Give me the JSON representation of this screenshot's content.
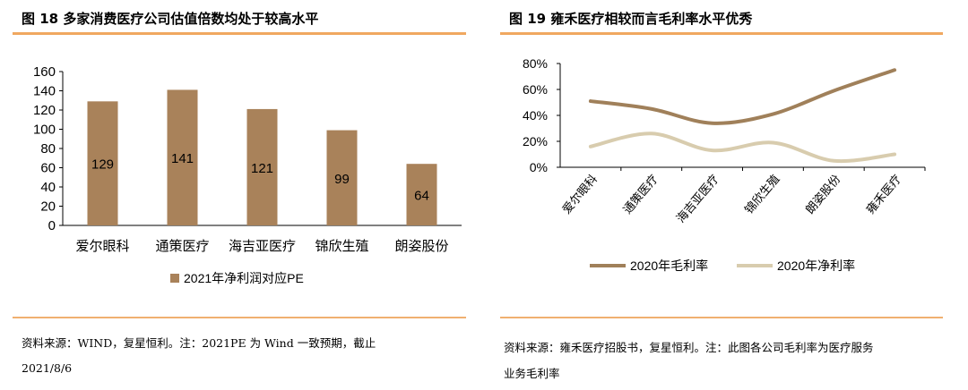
{
  "left": {
    "title": "图 18  多家消费医疗公司估值倍数均处于较高水平",
    "source_line1": "资料来源：WIND，复星恒利。注：2021PE 为 Wind 一致预期，截止",
    "source_line2": "2021/8/6"
  },
  "right": {
    "title": "图 19  雍禾医疗相较而言毛利率水平优秀",
    "source_line1": "资料来源：雍禾医疗招股书，复星恒利。注：此图各公司毛利率为医疗服务",
    "source_line2": "业务毛利率"
  },
  "chart_data": [
    {
      "type": "bar",
      "categories": [
        "爱尔眼科",
        "通策医疗",
        "海吉亚医疗",
        "锦欣生殖",
        "朗姿股份"
      ],
      "series": [
        {
          "name": "2021年净利润对应PE",
          "values": [
            129,
            141,
            121,
            99,
            64
          ],
          "color": "#a9825a"
        }
      ],
      "ylim": [
        0,
        160
      ],
      "yticks": [
        0,
        20,
        40,
        60,
        80,
        100,
        120,
        140,
        160
      ],
      "data_labels": true,
      "legend": "bottom",
      "grid": false
    },
    {
      "type": "line",
      "categories": [
        "爱尔眼科",
        "通策医疗",
        "海吉亚医疗",
        "锦欣生殖",
        "朗姿股份",
        "雍禾医疗"
      ],
      "series": [
        {
          "name": "2020年毛利率",
          "values": [
            51,
            45,
            34,
            41,
            59,
            75
          ],
          "color": "#a0805a"
        },
        {
          "name": "2020年净利率",
          "values": [
            16,
            26,
            13,
            19,
            5,
            10
          ],
          "color": "#d8ccae"
        }
      ],
      "ylim": [
        0,
        80
      ],
      "yticks": [
        "0%",
        "20%",
        "40%",
        "60%",
        "80%"
      ],
      "smooth": true,
      "legend": "bottom",
      "grid": false
    }
  ]
}
